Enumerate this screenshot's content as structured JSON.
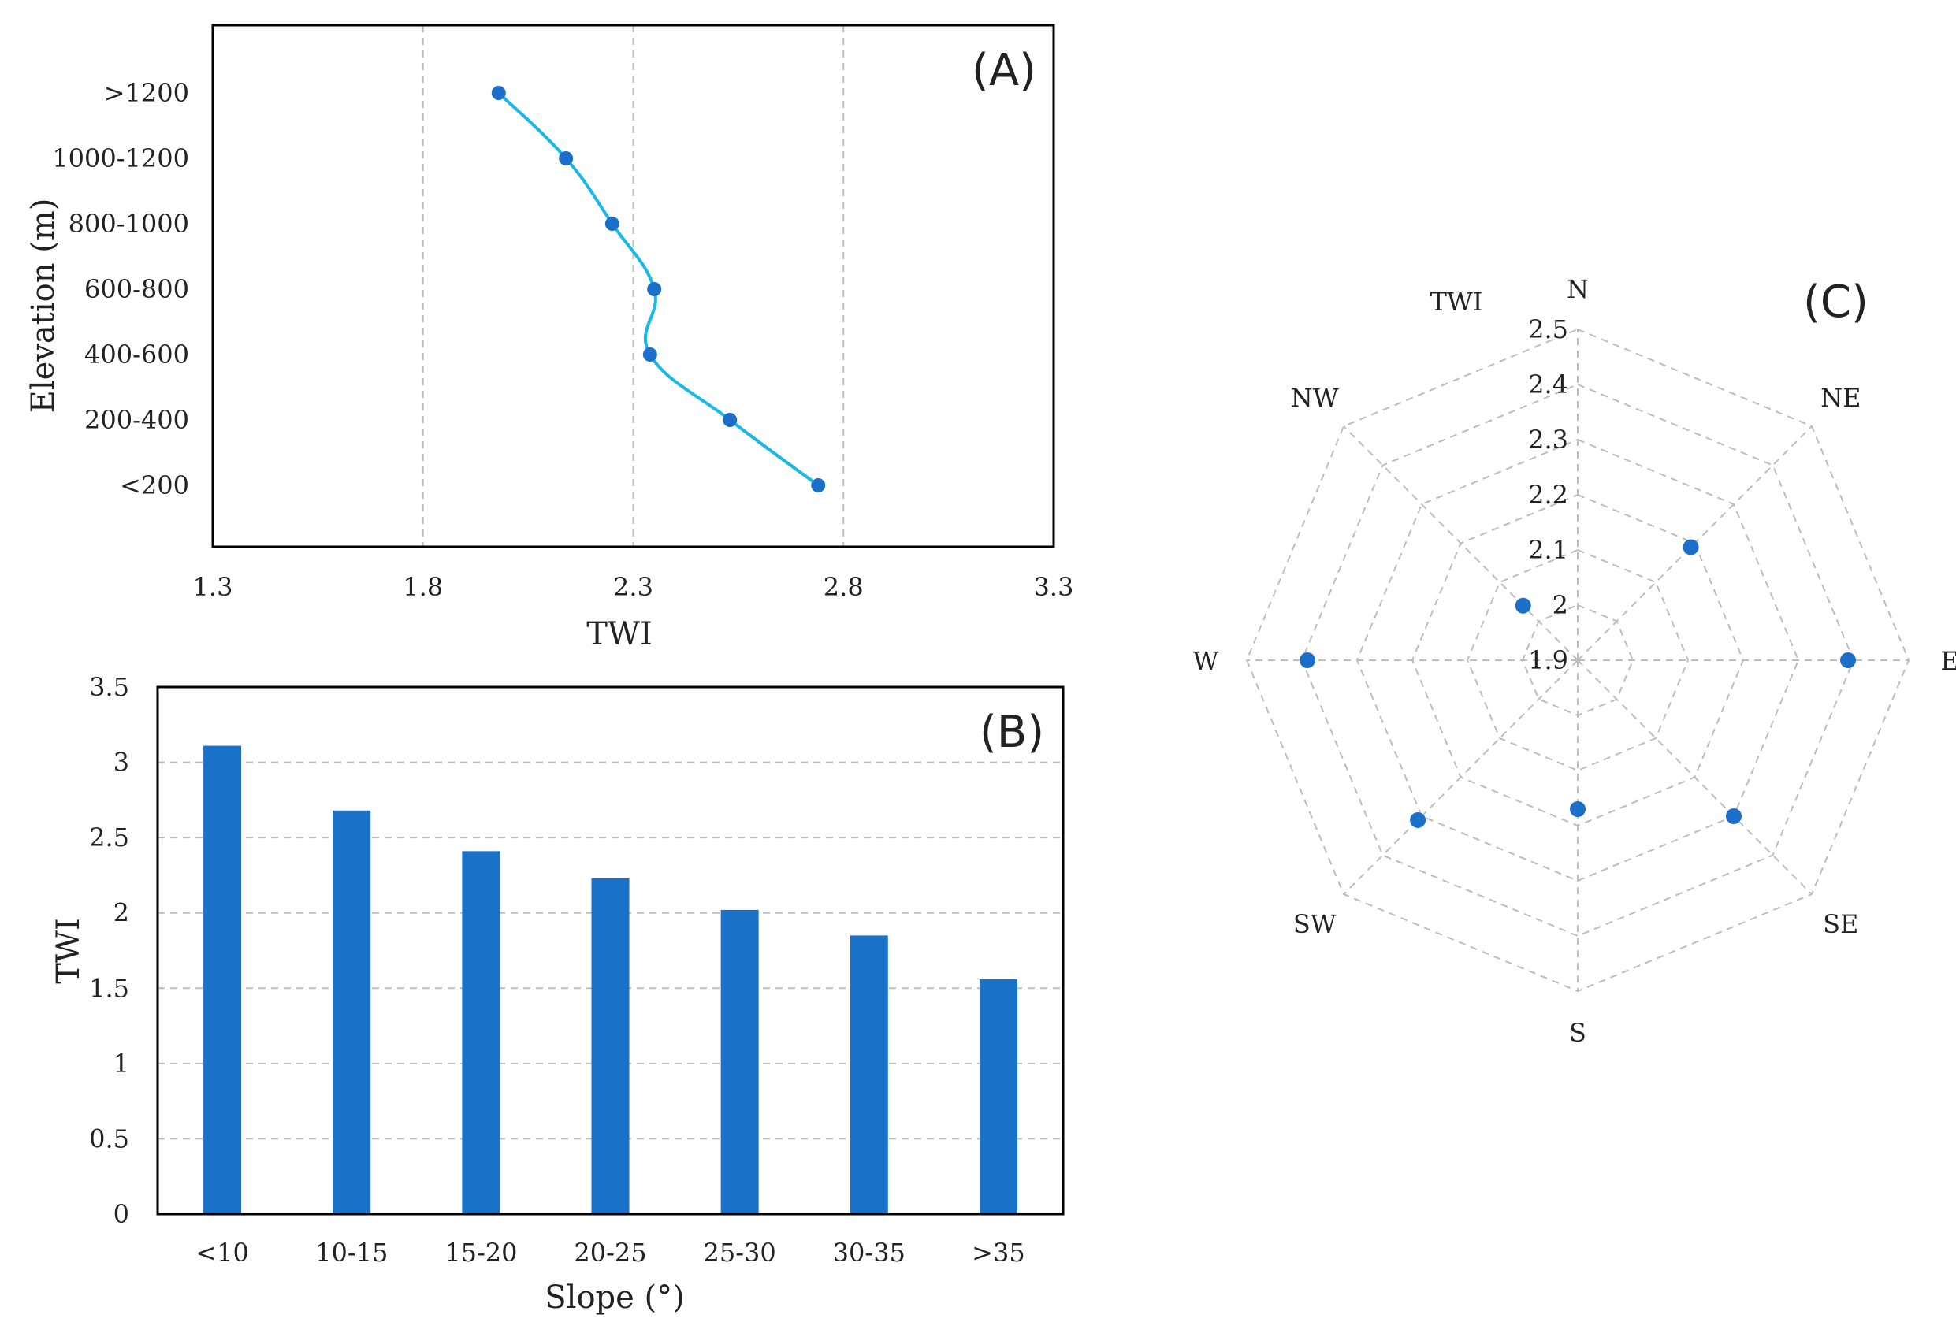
{
  "colors": {
    "line": "#1ab8e8",
    "marker": "#1c6fc9",
    "bar": "#1a72c8",
    "grid": "#bdbdbd",
    "frame": "#000000"
  },
  "chart_data": [
    {
      "id": "A",
      "type": "line",
      "panel_label": "(A)",
      "title": "",
      "xlabel": "TWI",
      "ylabel": "Elevation (m)",
      "xlim": [
        1.3,
        3.3
      ],
      "xticks": [
        "1.3",
        "1.8",
        "2.3",
        "2.8",
        "3.3"
      ],
      "grid_x": [
        1.8,
        2.3,
        2.8
      ],
      "categories": [
        "<200",
        "200-400",
        "400-600",
        "600-800",
        "800-1000",
        "1000-1200",
        ">1200"
      ],
      "values": [
        2.74,
        2.53,
        2.34,
        2.35,
        2.25,
        2.14,
        1.98
      ]
    },
    {
      "id": "B",
      "type": "bar",
      "panel_label": "(B)",
      "title": "",
      "xlabel": "Slope (°)",
      "ylabel": "TWI",
      "ylim": [
        0,
        3.5
      ],
      "yticks": [
        "0",
        "0.5",
        "1",
        "1.5",
        "2",
        "2.5",
        "3",
        "3.5"
      ],
      "categories": [
        "<10",
        "10-15",
        "15-20",
        "20-25",
        "25-30",
        "30-35",
        ">35"
      ],
      "values": [
        3.11,
        2.68,
        2.41,
        2.23,
        2.02,
        1.85,
        1.56
      ]
    },
    {
      "id": "C",
      "type": "radar",
      "panel_label": "(C)",
      "title": "",
      "axis_title": "TWI",
      "directions": [
        "N",
        "NE",
        "E",
        "SE",
        "S",
        "SW",
        "W",
        "NW"
      ],
      "rlim": [
        1.9,
        2.5
      ],
      "rticks": [
        "1.9",
        "2",
        "2.1",
        "2.2",
        "2.3",
        "2.4",
        "2.5"
      ],
      "values": [
        1.9,
        2.19,
        2.39,
        2.3,
        2.17,
        2.31,
        2.39,
        2.04
      ]
    }
  ]
}
